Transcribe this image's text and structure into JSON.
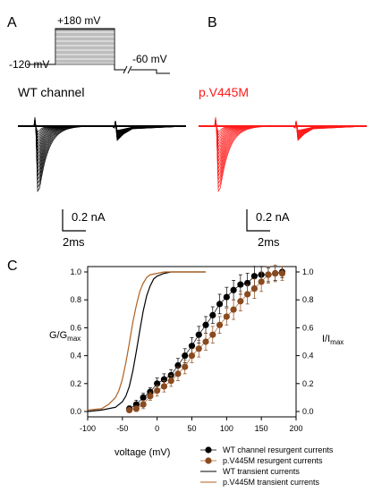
{
  "panels": {
    "a": "A",
    "b": "B",
    "c": "C"
  },
  "protocol": {
    "top_voltage": "+180 mV",
    "hold_voltage": "-120 mV",
    "tail_voltage": "-60 mV"
  },
  "traces": {
    "wt_title": "WT channel",
    "mut_title": "p.V445M",
    "scale_current": "0.2 nA",
    "scale_time": "2ms"
  },
  "colors": {
    "wt": "#000000",
    "mutant": "#ff1a1a",
    "mutant_marker": "#8a4a1f",
    "mutant_line": "#b06020"
  },
  "chart_data": {
    "type": "scatter",
    "xlabel": "voltage (mV)",
    "ylabel_left": "G/G",
    "ylabel_left_sub": "max",
    "ylabel_right": "I/I",
    "ylabel_right_sub": "max",
    "xlim": [
      -100,
      200
    ],
    "ylim": [
      0.0,
      1.0
    ],
    "x_ticks": [
      "-100",
      "-50",
      "0",
      "50",
      "100",
      "150",
      "200"
    ],
    "y_ticks_left": [
      "0.0",
      "0.2",
      "0.4",
      "0.6",
      "0.8",
      "1.0"
    ],
    "y_ticks_right": [
      "0.0",
      "0.2",
      "0.4",
      "0.6",
      "0.8",
      "1.0"
    ],
    "legend_placement": "bottom-right",
    "series": [
      {
        "name": "WT channel resurgent currents",
        "kind": "markers",
        "x": [
          -40,
          -30,
          -20,
          -10,
          0,
          10,
          20,
          30,
          40,
          50,
          60,
          70,
          80,
          90,
          100,
          110,
          120,
          130,
          140,
          150,
          160,
          170,
          180
        ],
        "y": [
          0.02,
          0.05,
          0.1,
          0.14,
          0.2,
          0.23,
          0.26,
          0.33,
          0.4,
          0.47,
          0.55,
          0.62,
          0.69,
          0.77,
          0.82,
          0.87,
          0.91,
          0.92,
          0.97,
          0.98,
          0.98,
          0.99,
          1.0
        ],
        "err": [
          0.02,
          0.03,
          0.03,
          0.03,
          0.04,
          0.04,
          0.04,
          0.05,
          0.05,
          0.06,
          0.06,
          0.06,
          0.06,
          0.07,
          0.07,
          0.07,
          0.07,
          0.07,
          0.07,
          0.06,
          0.05,
          0.05,
          0.04
        ]
      },
      {
        "name": "p.V445M resurgent currents",
        "kind": "markers",
        "x": [
          -40,
          -30,
          -20,
          -10,
          0,
          10,
          20,
          30,
          40,
          50,
          60,
          70,
          80,
          90,
          100,
          110,
          120,
          130,
          140,
          150,
          160,
          170,
          180
        ],
        "y": [
          0.01,
          0.02,
          0.05,
          0.11,
          0.15,
          0.18,
          0.22,
          0.27,
          0.32,
          0.4,
          0.45,
          0.5,
          0.55,
          0.62,
          0.68,
          0.73,
          0.79,
          0.84,
          0.88,
          0.93,
          0.98,
          0.99,
          0.99
        ],
        "err": [
          0.01,
          0.02,
          0.03,
          0.03,
          0.04,
          0.04,
          0.04,
          0.05,
          0.05,
          0.05,
          0.06,
          0.06,
          0.06,
          0.06,
          0.06,
          0.07,
          0.07,
          0.07,
          0.07,
          0.07,
          0.06,
          0.06,
          0.05
        ]
      },
      {
        "name": "WT transient currents",
        "kind": "line",
        "x": [
          -100,
          -80,
          -60,
          -50,
          -45,
          -40,
          -35,
          -30,
          -25,
          -20,
          -15,
          -10,
          -5,
          0,
          10,
          20,
          30,
          40,
          50,
          60,
          70
        ],
        "y": [
          0.0,
          0.01,
          0.03,
          0.07,
          0.11,
          0.18,
          0.29,
          0.43,
          0.58,
          0.72,
          0.83,
          0.9,
          0.95,
          0.97,
          0.99,
          1.0,
          1.0,
          1.0,
          1.0,
          1.0,
          1.0
        ]
      },
      {
        "name": "p.V445M transient currents",
        "kind": "line",
        "x": [
          -100,
          -80,
          -70,
          -60,
          -55,
          -50,
          -45,
          -40,
          -35,
          -30,
          -25,
          -20,
          -15,
          -10,
          0,
          10,
          20,
          30,
          40,
          50,
          60,
          70
        ],
        "y": [
          0.01,
          0.02,
          0.05,
          0.1,
          0.15,
          0.23,
          0.35,
          0.49,
          0.64,
          0.76,
          0.86,
          0.92,
          0.96,
          0.98,
          0.99,
          1.0,
          1.0,
          1.0,
          1.0,
          1.0,
          1.0,
          1.0
        ]
      }
    ]
  }
}
